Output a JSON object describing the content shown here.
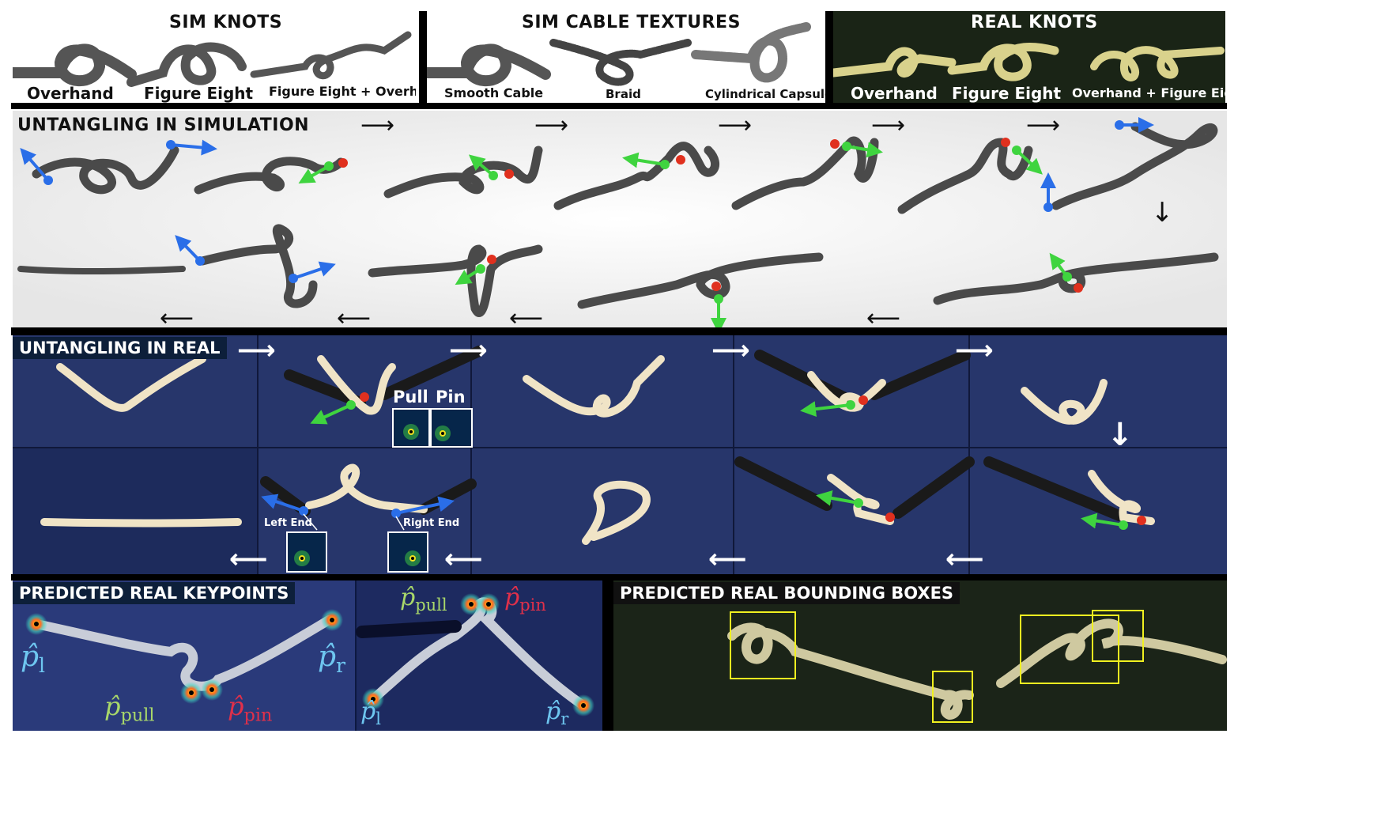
{
  "sections": {
    "sim_knots": {
      "title": "SIM KNOTS",
      "labels": [
        "Overhand",
        "Figure Eight",
        "Figure Eight + Overhand"
      ]
    },
    "sim_textures": {
      "title": "SIM CABLE TEXTURES",
      "labels": [
        "Smooth Cable",
        "Braid",
        "Cylindrical Capsules"
      ]
    },
    "real_knots": {
      "title": "REAL KNOTS",
      "labels": [
        "Overhand",
        "Figure Eight",
        "Overhand + Figure Eight"
      ]
    },
    "untangling_sim": {
      "title": "UNTANGLING IN SIMULATION"
    },
    "untangling_real": {
      "title": "UNTANGLING IN REAL",
      "pull_label": "Pull",
      "pin_label": "Pin",
      "left_end_label": "Left End",
      "right_end_label": "Right End"
    },
    "keypoints": {
      "title": "PREDICTED REAL KEYPOINTS",
      "p_symbol": "p̂",
      "sub_l": "l",
      "sub_r": "r",
      "sub_pull": "pull",
      "sub_pin": "pin"
    },
    "bboxes": {
      "title": "PREDICTED REAL BOUNDING BOXES"
    }
  },
  "arrows": {
    "right": "⟶",
    "left": "⟵",
    "down": "↓",
    "right_bold": "⟶",
    "left_bold": "⟵",
    "down_bold": "↓"
  },
  "colors": {
    "pull": "#3fd43f",
    "pin": "#e0301e",
    "end": "#2a6ee8",
    "real_bg": "#27366b",
    "bbox": "#f0f020",
    "keypoint_l": "#6ec6f0",
    "keypoint_pull": "#a9d86a",
    "keypoint_pin": "#e0304a"
  }
}
